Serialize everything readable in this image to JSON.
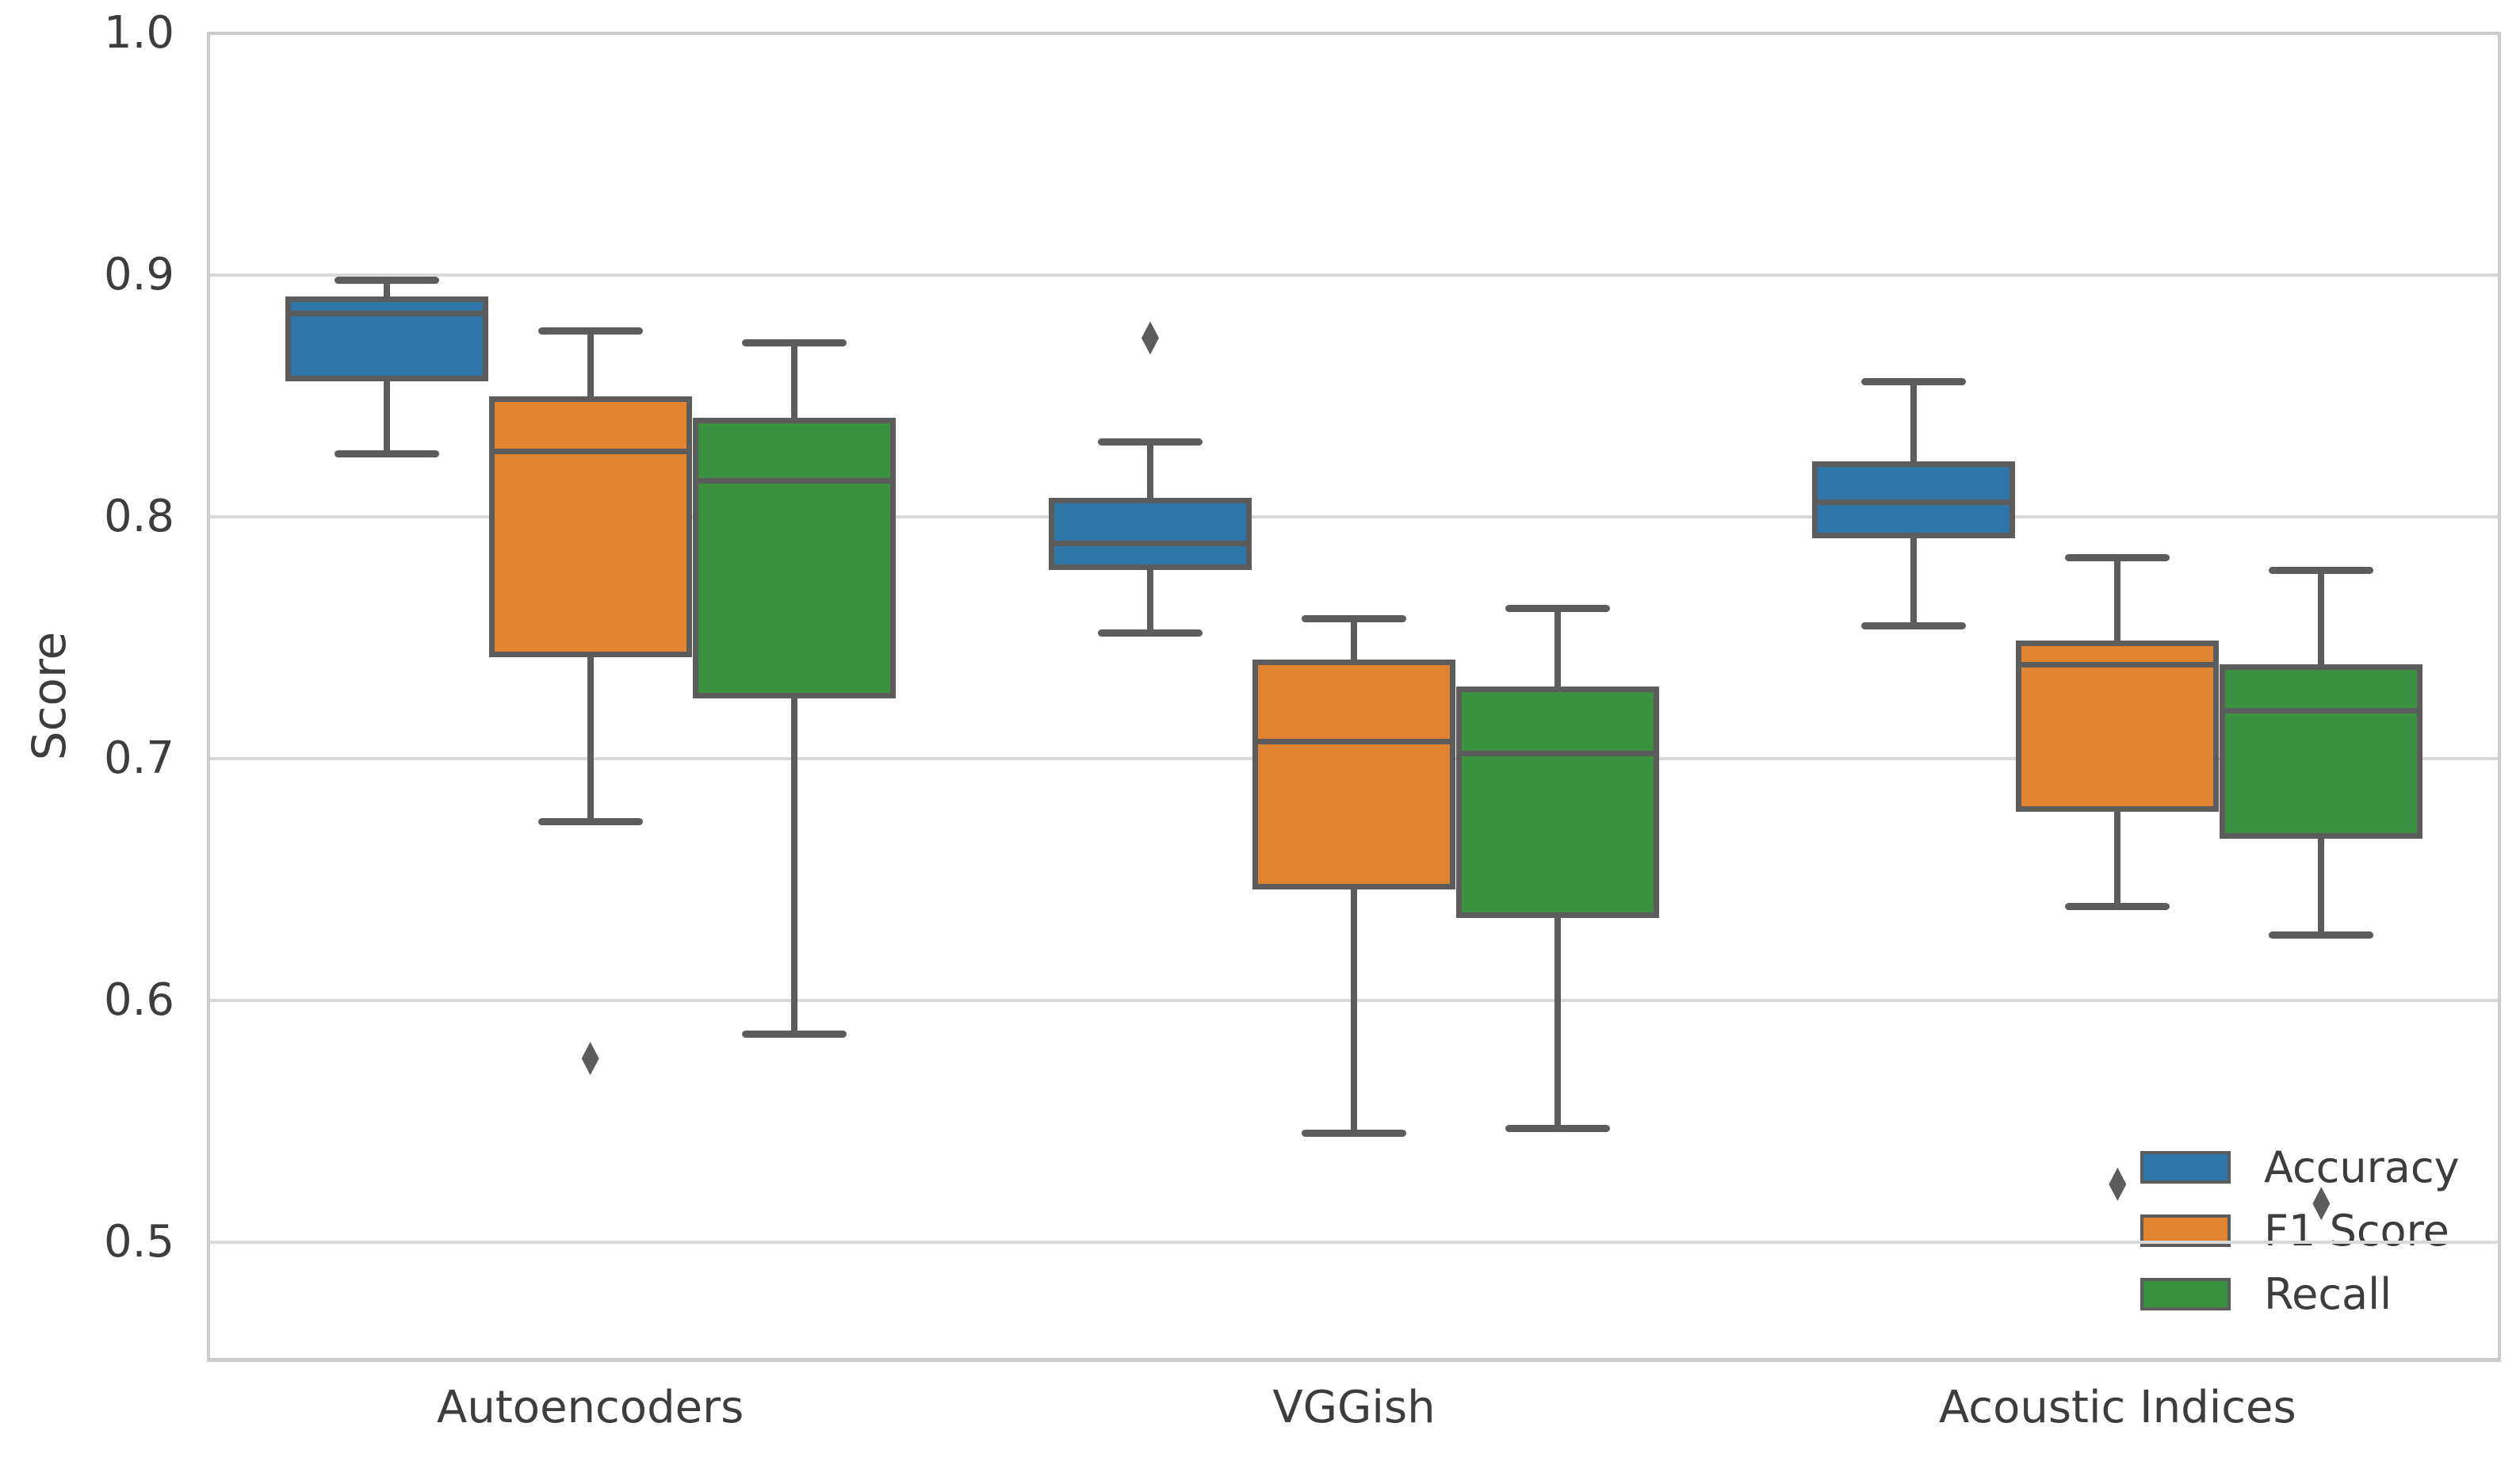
{
  "chart_data": {
    "type": "boxplot",
    "title": "",
    "xlabel": "",
    "ylabel": "Score",
    "categories": [
      "Autoencoders",
      "VGGish",
      "Acoustic Indices"
    ],
    "yticks": [
      0.5,
      0.6,
      0.7,
      0.8,
      0.9,
      1.0
    ],
    "ylim": [
      0.4515,
      1.0
    ],
    "grid": "horizontal",
    "legend_position": "lower right",
    "series": [
      {
        "name": "Accuracy",
        "color": "#2e76a8",
        "boxes": [
          {
            "category": "Autoencoders",
            "whislo": 0.826,
            "q1": 0.856,
            "med": 0.884,
            "q3": 0.891,
            "whishi": 0.898,
            "outliers": []
          },
          {
            "category": "VGGish",
            "whislo": 0.752,
            "q1": 0.778,
            "med": 0.789,
            "q3": 0.808,
            "whishi": 0.831,
            "outliers": [
              0.874
            ]
          },
          {
            "category": "Acoustic Indices",
            "whislo": 0.755,
            "q1": 0.791,
            "med": 0.806,
            "q3": 0.823,
            "whishi": 0.856,
            "outliers": []
          }
        ]
      },
      {
        "name": "F1 Score",
        "color": "#e18431",
        "boxes": [
          {
            "category": "Autoencoders",
            "whislo": 0.674,
            "q1": 0.742,
            "med": 0.827,
            "q3": 0.85,
            "whishi": 0.877,
            "outliers": [
              0.576
            ]
          },
          {
            "category": "VGGish",
            "whislo": 0.545,
            "q1": 0.646,
            "med": 0.707,
            "q3": 0.741,
            "whishi": 0.758,
            "outliers": []
          },
          {
            "category": "Acoustic Indices",
            "whislo": 0.639,
            "q1": 0.678,
            "med": 0.739,
            "q3": 0.749,
            "whishi": 0.783,
            "outliers": [
              0.524
            ]
          }
        ]
      },
      {
        "name": "Recall",
        "color": "#3a9240",
        "boxes": [
          {
            "category": "Autoencoders",
            "whislo": 0.586,
            "q1": 0.725,
            "med": 0.815,
            "q3": 0.841,
            "whishi": 0.872,
            "outliers": []
          },
          {
            "category": "VGGish",
            "whislo": 0.547,
            "q1": 0.634,
            "med": 0.702,
            "q3": 0.73,
            "whishi": 0.762,
            "outliers": []
          },
          {
            "category": "Acoustic Indices",
            "whislo": 0.627,
            "q1": 0.667,
            "med": 0.72,
            "q3": 0.739,
            "whishi": 0.778,
            "outliers": [
              0.516
            ]
          }
        ]
      }
    ],
    "style": {
      "edge_color": "#5c5c5c",
      "grid_color": "#d9d9d9",
      "spine_color": "#cccccc",
      "text_color": "#3d3d3d",
      "background": "#ffffff"
    }
  }
}
